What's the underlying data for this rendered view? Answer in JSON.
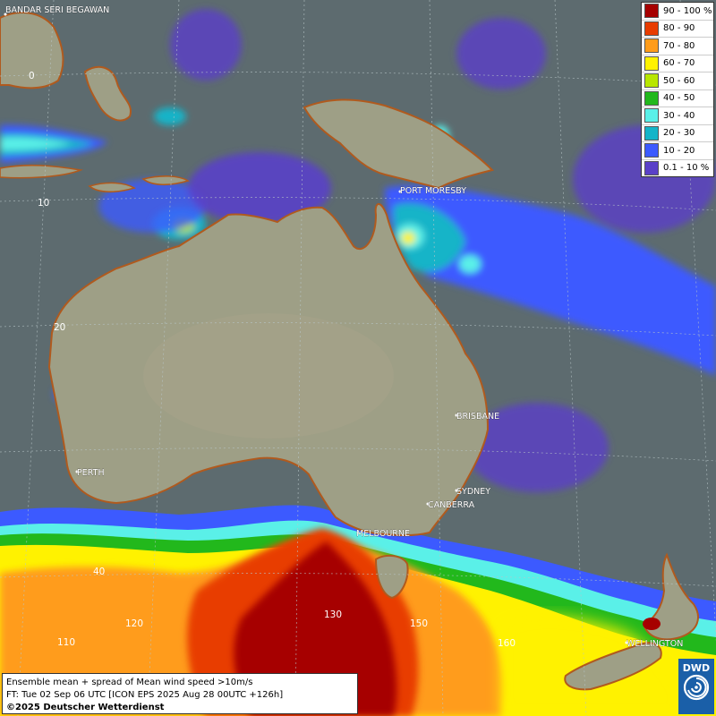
{
  "legend": {
    "items": [
      {
        "label": "90 - 100 %",
        "color": "#a60000"
      },
      {
        "label": "80 - 90",
        "color": "#e83c00"
      },
      {
        "label": "70 - 80",
        "color": "#ff9c1a"
      },
      {
        "label": "60 - 70",
        "color": "#fff200"
      },
      {
        "label": "50 - 60",
        "color": "#b8e600"
      },
      {
        "label": "40 - 50",
        "color": "#22b81c"
      },
      {
        "label": "30 - 40",
        "color": "#5af0e8"
      },
      {
        "label": "20 - 30",
        "color": "#14b4c8"
      },
      {
        "label": "10 - 20",
        "color": "#3c5aff"
      },
      {
        "label": "0.1 - 10 %",
        "color": "#5a40c8"
      }
    ]
  },
  "cities": {
    "bandar": "BANDAR SERI BEGAWAN",
    "port_moresby": "PORT MORESBY",
    "brisbane": "BRISBANE",
    "perth": "PERTH",
    "sydney": "SYDNEY",
    "canberra": "CANBERRA",
    "melbourne": "MELBOURNE",
    "wellington": "WELLINGTON"
  },
  "grid_labels": {
    "lat0": "0",
    "lat10": "10",
    "lat20": "20",
    "lat40": "40",
    "lon110": "110",
    "lon120": "120",
    "lon130": "130",
    "lon150": "150",
    "lon160": "160"
  },
  "caption": {
    "line1": "Ensemble mean + spread of Mean wind speed >10m/s",
    "line2": "FT: Tue 02 Sep 06 UTC [ICON EPS 2025 Aug 28 00UTC +126h]",
    "line3": "©2025 Deutscher Wetterdienst"
  },
  "logo": {
    "text": "DWD"
  }
}
